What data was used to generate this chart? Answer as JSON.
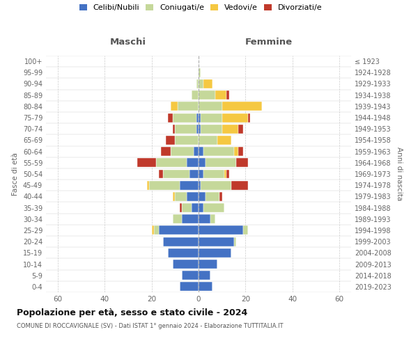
{
  "age_groups": [
    "0-4",
    "5-9",
    "10-14",
    "15-19",
    "20-24",
    "25-29",
    "30-34",
    "35-39",
    "40-44",
    "45-49",
    "50-54",
    "55-59",
    "60-64",
    "65-69",
    "70-74",
    "75-79",
    "80-84",
    "85-89",
    "90-94",
    "95-99",
    "100+"
  ],
  "birth_years": [
    "2019-2023",
    "2014-2018",
    "2009-2013",
    "2004-2008",
    "1999-2003",
    "1994-1998",
    "1989-1993",
    "1984-1988",
    "1979-1983",
    "1974-1978",
    "1969-1973",
    "1964-1968",
    "1959-1963",
    "1954-1958",
    "1949-1953",
    "1944-1948",
    "1939-1943",
    "1934-1938",
    "1929-1933",
    "1924-1928",
    "≤ 1923"
  ],
  "maschi_celibi": [
    8,
    7,
    11,
    13,
    15,
    17,
    7,
    3,
    5,
    8,
    4,
    5,
    2,
    0,
    1,
    1,
    0,
    0,
    0,
    0,
    0
  ],
  "maschi_coniugati": [
    0,
    0,
    0,
    0,
    0,
    2,
    4,
    4,
    5,
    13,
    11,
    13,
    10,
    10,
    9,
    10,
    9,
    3,
    1,
    0,
    0
  ],
  "maschi_vedovi": [
    0,
    0,
    0,
    0,
    0,
    1,
    0,
    0,
    1,
    1,
    0,
    0,
    0,
    0,
    0,
    0,
    3,
    0,
    0,
    0,
    0
  ],
  "maschi_divorziati": [
    0,
    0,
    0,
    0,
    0,
    0,
    0,
    1,
    0,
    0,
    2,
    8,
    4,
    4,
    1,
    2,
    0,
    0,
    0,
    0,
    0
  ],
  "femmine_nubili": [
    6,
    5,
    8,
    14,
    15,
    19,
    5,
    2,
    3,
    1,
    2,
    3,
    2,
    0,
    1,
    1,
    0,
    0,
    0,
    0,
    0
  ],
  "femmine_coniugate": [
    0,
    0,
    0,
    0,
    1,
    2,
    2,
    9,
    6,
    13,
    9,
    13,
    13,
    8,
    9,
    9,
    10,
    7,
    2,
    1,
    0
  ],
  "femmine_vedove": [
    0,
    0,
    0,
    0,
    0,
    0,
    0,
    0,
    0,
    0,
    1,
    0,
    2,
    6,
    7,
    11,
    17,
    5,
    4,
    0,
    0
  ],
  "femmine_divorziate": [
    0,
    0,
    0,
    0,
    0,
    0,
    0,
    0,
    1,
    7,
    1,
    5,
    2,
    0,
    2,
    1,
    0,
    1,
    0,
    0,
    0
  ],
  "color_celibi": "#4472C4",
  "color_coniugati": "#C5D89A",
  "color_vedovi": "#F5C842",
  "color_divorziati": "#C0392B",
  "xlim": 65,
  "title": "Popolazione per età, sesso e stato civile - 2024",
  "subtitle": "COMUNE DI ROCCAVIGNALE (SV) - Dati ISTAT 1° gennaio 2024 - Elaborazione TUTTITALIA.IT",
  "label_maschi": "Maschi",
  "label_femmine": "Femmine",
  "ylabel_left": "Fasce di età",
  "ylabel_right": "Anni di nascita",
  "legend_labels": [
    "Celibi/Nubili",
    "Coniugati/e",
    "Vedovi/e",
    "Divorziati/e"
  ],
  "bg_color": "#ffffff",
  "grid_color": "#cccccc"
}
